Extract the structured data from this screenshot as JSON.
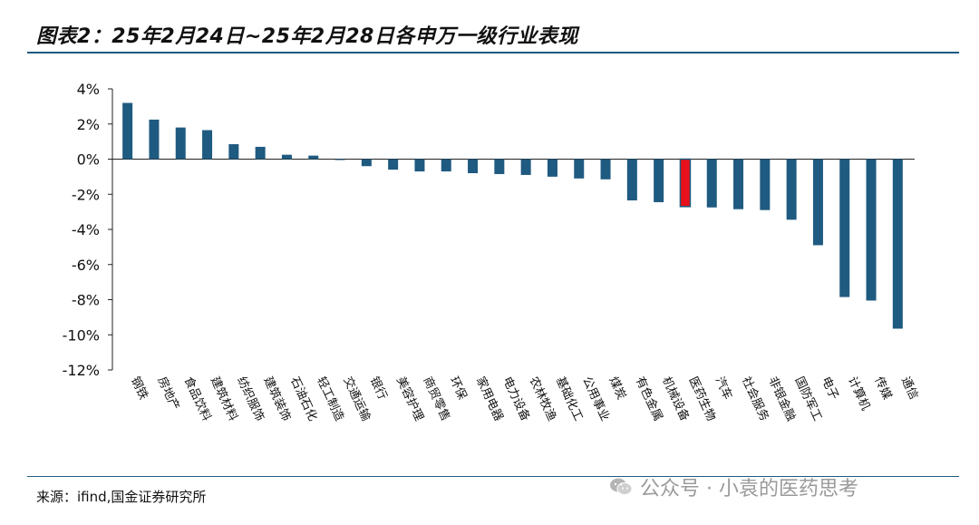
{
  "title": "图表2：25年2月24日~25年2月28日各申万一级行业表现",
  "source": "来源：ifind,国金证券研究所",
  "watermark": "公众号 · 小袁的医药思考",
  "colors": {
    "bar": "#1f5a80",
    "highlight": "#e8101a",
    "rule": "#1f5a80"
  },
  "chart_data": {
    "type": "bar",
    "title": "图表2：25年2月24日~25年2月28日各申万一级行业表现",
    "xlabel": "",
    "ylabel": "",
    "ylim": [
      -12,
      4
    ],
    "yticks": [
      4,
      2,
      0,
      -2,
      -4,
      -6,
      -8,
      -10,
      -12
    ],
    "ytick_labels": [
      "4%",
      "2%",
      "0%",
      "-2%",
      "-4%",
      "-6%",
      "-8%",
      "-10%",
      "-12%"
    ],
    "grid": false,
    "highlight_category": "医药生物",
    "categories": [
      "钢铁",
      "房地产",
      "食品饮料",
      "建筑材料",
      "纺织服饰",
      "建筑装饰",
      "石油石化",
      "轻工制造",
      "交通运输",
      "银行",
      "美容护理",
      "商贸零售",
      "环保",
      "家用电器",
      "电力设备",
      "农林牧渔",
      "基础化工",
      "公用事业",
      "煤炭",
      "有色金属",
      "机械设备",
      "医药生物",
      "汽车",
      "社会服务",
      "非银金融",
      "国防军工",
      "电子",
      "计算机",
      "传媒",
      "通信"
    ],
    "values": [
      3.2,
      2.25,
      1.8,
      1.65,
      0.85,
      0.7,
      0.25,
      0.2,
      -0.05,
      -0.4,
      -0.6,
      -0.7,
      -0.7,
      -0.8,
      -0.85,
      -0.9,
      -1.0,
      -1.1,
      -1.15,
      -2.35,
      -2.45,
      -2.7,
      -2.75,
      -2.85,
      -2.9,
      -3.45,
      -4.9,
      -7.85,
      -8.05,
      -9.65
    ]
  }
}
